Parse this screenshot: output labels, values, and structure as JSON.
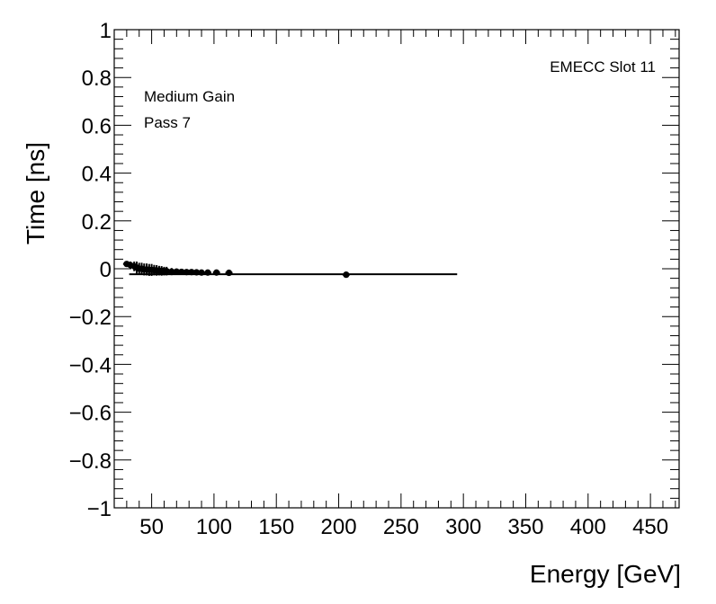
{
  "chart_data": {
    "type": "scatter",
    "xlabel": "Energy [GeV]",
    "ylabel": "Time [ns]",
    "xlim": [
      20,
      473
    ],
    "ylim": [
      -1,
      1
    ],
    "x_ticks": [
      50,
      100,
      150,
      200,
      250,
      300,
      350,
      400,
      450
    ],
    "y_ticks": [
      -1,
      -0.8,
      -0.6,
      -0.4,
      -0.2,
      0,
      0.2,
      0.4,
      0.6,
      0.8,
      1
    ],
    "x_tick_labels": [
      "50",
      "100",
      "150",
      "200",
      "250",
      "300",
      "350",
      "400",
      "450"
    ],
    "y_tick_labels": [
      "−1",
      "−0.8",
      "−0.6",
      "−0.4",
      "−0.2",
      "0",
      "0.2",
      "0.4",
      "0.6",
      "0.8",
      "1"
    ],
    "annotations": {
      "top_right": "EMECC Slot 11",
      "gain": "Medium Gain",
      "pass": "Pass 7"
    },
    "grid": false,
    "points": [
      {
        "x": 30,
        "y": 0.02,
        "yerr": 0.012
      },
      {
        "x": 33,
        "y": 0.015,
        "yerr": 0.015
      },
      {
        "x": 36,
        "y": 0.01,
        "yerr": 0.02
      },
      {
        "x": 38,
        "y": 0.005,
        "yerr": 0.025
      },
      {
        "x": 40,
        "y": 0.0,
        "yerr": 0.025
      },
      {
        "x": 42,
        "y": 0.0,
        "yerr": 0.025
      },
      {
        "x": 44,
        "y": -0.003,
        "yerr": 0.025
      },
      {
        "x": 46,
        "y": -0.003,
        "yerr": 0.025
      },
      {
        "x": 48,
        "y": -0.005,
        "yerr": 0.025
      },
      {
        "x": 50,
        "y": -0.005,
        "yerr": 0.025
      },
      {
        "x": 52,
        "y": -0.006,
        "yerr": 0.022
      },
      {
        "x": 54,
        "y": -0.007,
        "yerr": 0.022
      },
      {
        "x": 56,
        "y": -0.008,
        "yerr": 0.02
      },
      {
        "x": 58,
        "y": -0.009,
        "yerr": 0.02
      },
      {
        "x": 60,
        "y": -0.01,
        "yerr": 0.018
      },
      {
        "x": 62,
        "y": -0.01,
        "yerr": 0.018
      },
      {
        "x": 66,
        "y": -0.012,
        "yerr": 0.015
      },
      {
        "x": 70,
        "y": -0.012,
        "yerr": 0.013
      },
      {
        "x": 74,
        "y": -0.013,
        "yerr": 0.012
      },
      {
        "x": 78,
        "y": -0.014,
        "yerr": 0.011
      },
      {
        "x": 82,
        "y": -0.014,
        "yerr": 0.01
      },
      {
        "x": 86,
        "y": -0.015,
        "yerr": 0.009
      },
      {
        "x": 90,
        "y": -0.016,
        "yerr": 0.008
      },
      {
        "x": 95,
        "y": -0.016,
        "yerr": 0.007
      },
      {
        "x": 102,
        "y": -0.016,
        "yerr": 0.006
      },
      {
        "x": 112,
        "y": -0.017,
        "yerr": 0.006
      },
      {
        "x": 206,
        "y": -0.025,
        "yerr": 0.005
      }
    ],
    "fit_line": {
      "x": [
        32,
        295
      ],
      "y": [
        -0.023,
        -0.023
      ]
    }
  }
}
